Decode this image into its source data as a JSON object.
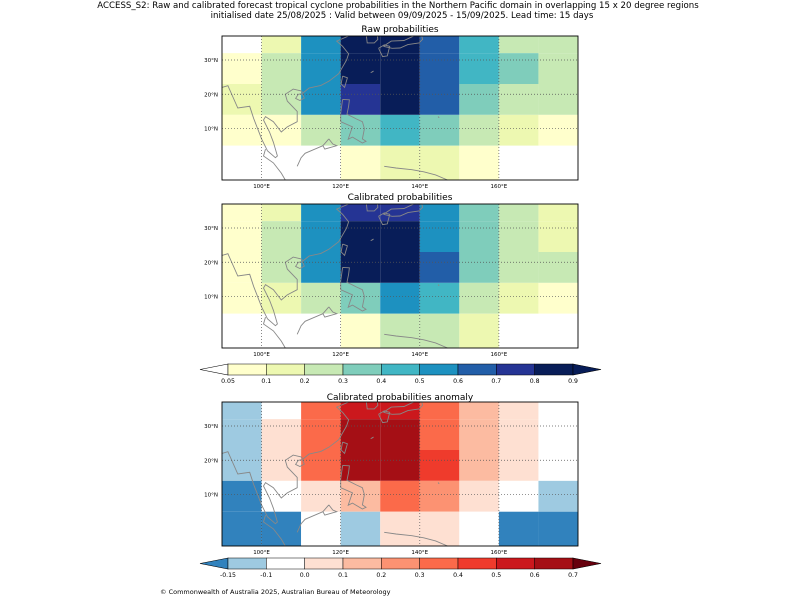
{
  "figure": {
    "title_line1": "ACCESS_S2: Raw and calibrated forecast tropical cyclone probabilities in the Northern Pacific domain in overlapping 15 x 20 degree regions",
    "title_line2": "initialised date 25/08/2025 :  Valid between 09/09/2025 - 15/09/2025. Lead time: 15 days",
    "copyright": "© Commonwealth of Australia 2025, Australian Bureau of Meteorology"
  },
  "chart_data": [
    {
      "type": "heatmap",
      "title": "Raw probabilities",
      "x_tick_labels": [
        "100°E",
        "120°E",
        "140°E",
        "160°E"
      ],
      "y_tick_labels": [
        "10°N",
        "20°N",
        "30°N"
      ],
      "colorbar": "probability",
      "rows": [
        [
          "#ffffff",
          "#edf8b1",
          "#1d91c0",
          "#081d58",
          "#081d58",
          "#225ea8",
          "#41b6c4",
          "#c7e9b4",
          "#c7e9b4"
        ],
        [
          "#ffffcc",
          "#c7e9b4",
          "#1d91c0",
          "#081d58",
          "#081d58",
          "#225ea8",
          "#41b6c4",
          "#7fcdbb",
          "#c7e9b4"
        ],
        [
          "#edf8b1",
          "#c7e9b4",
          "#1d91c0",
          "#253494",
          "#081d58",
          "#225ea8",
          "#7fcdbb",
          "#c7e9b4",
          "#c7e9b4"
        ],
        [
          "#ffffcc",
          "#ffffcc",
          "#c7e9b4",
          "#7fcdbb",
          "#41b6c4",
          "#7fcdbb",
          "#c7e9b4",
          "#edf8b1",
          "#ffffcc"
        ],
        [
          "#ffffff",
          "#ffffff",
          "#ffffff",
          "#ffffcc",
          "#edf8b1",
          "#edf8b1",
          "#ffffcc",
          "#ffffff",
          "#ffffff"
        ]
      ]
    },
    {
      "type": "heatmap",
      "title": "Calibrated probabilities",
      "x_tick_labels": [
        "100°E",
        "120°E",
        "140°E",
        "160°E"
      ],
      "y_tick_labels": [
        "10°N",
        "20°N",
        "30°N"
      ],
      "colorbar": "probability",
      "rows": [
        [
          "#ffffcc",
          "#edf8b1",
          "#1d91c0",
          "#253494",
          "#253494",
          "#1d91c0",
          "#7fcdbb",
          "#c7e9b4",
          "#edf8b1"
        ],
        [
          "#ffffcc",
          "#c7e9b4",
          "#1d91c0",
          "#081d58",
          "#081d58",
          "#1d91c0",
          "#7fcdbb",
          "#c7e9b4",
          "#edf8b1"
        ],
        [
          "#ffffcc",
          "#c7e9b4",
          "#1d91c0",
          "#081d58",
          "#081d58",
          "#225ea8",
          "#7fcdbb",
          "#c7e9b4",
          "#c7e9b4"
        ],
        [
          "#ffffcc",
          "#edf8b1",
          "#c7e9b4",
          "#7fcdbb",
          "#1d91c0",
          "#41b6c4",
          "#c7e9b4",
          "#edf8b1",
          "#ffffcc"
        ],
        [
          "#ffffff",
          "#ffffff",
          "#ffffff",
          "#ffffcc",
          "#c7e9b4",
          "#c7e9b4",
          "#edf8b1",
          "#ffffff",
          "#ffffff"
        ]
      ]
    },
    {
      "type": "heatmap",
      "title": "Calibrated probabilities anomaly",
      "x_tick_labels": [
        "100°E",
        "120°E",
        "140°E",
        "160°E"
      ],
      "y_tick_labels": [
        "10°N",
        "20°N",
        "30°N"
      ],
      "colorbar": "anomaly",
      "rows": [
        [
          "#9ecae1",
          "#ffffff",
          "#fb6a4a",
          "#cb181d",
          "#cb181d",
          "#fb6a4a",
          "#fcbba1",
          "#fee0d2",
          "#ffffff"
        ],
        [
          "#9ecae1",
          "#fee0d2",
          "#fb6a4a",
          "#a50f15",
          "#a50f15",
          "#fb6a4a",
          "#fcbba1",
          "#fee0d2",
          "#ffffff"
        ],
        [
          "#9ecae1",
          "#fee0d2",
          "#fb6a4a",
          "#a50f15",
          "#a50f15",
          "#ef3b2c",
          "#fcbba1",
          "#fee0d2",
          "#ffffff"
        ],
        [
          "#3182bd",
          "#ffffff",
          "#fee0d2",
          "#fcbba1",
          "#fb6a4a",
          "#fc9272",
          "#fee0d2",
          "#ffffff",
          "#9ecae1"
        ],
        [
          "#3182bd",
          "#3182bd",
          "#ffffff",
          "#9ecae1",
          "#fee0d2",
          "#fee0d2",
          "#ffffff",
          "#3182bd",
          "#3182bd"
        ]
      ]
    }
  ],
  "colorbars": {
    "probability": {
      "tick_labels": [
        "0.05",
        "0.1",
        "0.2",
        "0.3",
        "0.4",
        "0.5",
        "0.6",
        "0.7",
        "0.8",
        "0.9"
      ],
      "under_color": "#ffffff",
      "over_color": "#081d58",
      "colors": [
        "#ffffcc",
        "#edf8b1",
        "#c7e9b4",
        "#7fcdbb",
        "#41b6c4",
        "#1d91c0",
        "#225ea8",
        "#253494",
        "#081d58"
      ]
    },
    "anomaly": {
      "tick_labels": [
        "-0.15",
        "-0.1",
        "0.0",
        "0.1",
        "0.2",
        "0.3",
        "0.4",
        "0.5",
        "0.6",
        "0.7"
      ],
      "under_color": "#3182bd",
      "over_color": "#67000d",
      "colors": [
        "#9ecae1",
        "#ffffff",
        "#fee0d2",
        "#fcbba1",
        "#fc9272",
        "#fb6a4a",
        "#ef3b2c",
        "#cb181d",
        "#a50f15"
      ]
    }
  }
}
